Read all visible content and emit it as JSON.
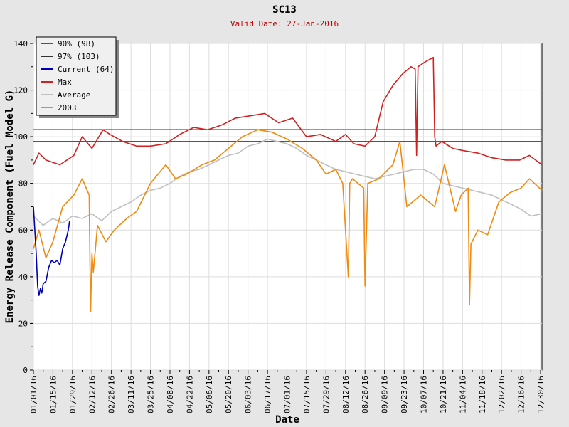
{
  "chart_data": {
    "type": "line",
    "title": "SC13",
    "subtitle": "Valid Date: 27-Jan-2016",
    "xlabel": "Date",
    "ylabel": "Energy Release Component (Fuel Model G)",
    "ylim": [
      0,
      140
    ],
    "yticks": [
      0,
      20,
      40,
      60,
      80,
      100,
      120,
      140
    ],
    "xticks": [
      "01/01/16",
      "01/15/16",
      "01/29/16",
      "02/12/16",
      "02/26/16",
      "03/11/16",
      "03/25/16",
      "04/08/16",
      "04/22/16",
      "05/06/16",
      "05/20/16",
      "06/03/16",
      "06/17/16",
      "07/01/16",
      "07/15/16",
      "07/29/16",
      "08/12/16",
      "08/26/16",
      "09/09/16",
      "09/23/16",
      "10/07/16",
      "10/21/16",
      "11/04/16",
      "11/18/16",
      "12/02/16",
      "12/16/16",
      "12/30/16"
    ],
    "grid": true,
    "legend_position": "top-left",
    "series": [
      {
        "name": "90% (98)",
        "color": "#555555",
        "type": "hline",
        "value": 98
      },
      {
        "name": "97% (103)",
        "color": "#333333",
        "type": "hline",
        "value": 103
      },
      {
        "name": "Current (64)",
        "color": "#0000b0",
        "x": [
          "2016-01-01",
          "2016-01-03",
          "2016-01-04",
          "2016-01-05",
          "2016-01-06",
          "2016-01-07",
          "2016-01-08",
          "2016-01-10",
          "2016-01-12",
          "2016-01-14",
          "2016-01-16",
          "2016-01-18",
          "2016-01-20",
          "2016-01-22",
          "2016-01-24",
          "2016-01-26",
          "2016-01-27"
        ],
        "y": [
          70,
          50,
          36,
          32,
          35,
          33,
          37,
          38,
          44,
          47,
          46,
          47,
          45,
          52,
          55,
          60,
          64
        ]
      },
      {
        "name": "Max",
        "color": "#d02020",
        "x": [
          "2016-01-01",
          "2016-01-05",
          "2016-01-10",
          "2016-01-20",
          "2016-01-30",
          "2016-02-05",
          "2016-02-12",
          "2016-02-20",
          "2016-02-25",
          "2016-03-05",
          "2016-03-15",
          "2016-03-25",
          "2016-04-05",
          "2016-04-15",
          "2016-04-25",
          "2016-05-05",
          "2016-05-15",
          "2016-05-25",
          "2016-06-05",
          "2016-06-15",
          "2016-06-25",
          "2016-07-05",
          "2016-07-15",
          "2016-07-25",
          "2016-08-05",
          "2016-08-12",
          "2016-08-18",
          "2016-08-26",
          "2016-09-02",
          "2016-09-08",
          "2016-09-15",
          "2016-09-22",
          "2016-09-28",
          "2016-10-01",
          "2016-10-02",
          "2016-10-03",
          "2016-10-08",
          "2016-10-14",
          "2016-10-15",
          "2016-10-16",
          "2016-10-20",
          "2016-10-28",
          "2016-11-05",
          "2016-11-15",
          "2016-11-25",
          "2016-12-05",
          "2016-12-15",
          "2016-12-22",
          "2016-12-31"
        ],
        "y": [
          88,
          93,
          90,
          88,
          92,
          100,
          95,
          103,
          101,
          98,
          96,
          96,
          97,
          101,
          104,
          103,
          105,
          108,
          109,
          110,
          106,
          108,
          100,
          101,
          98,
          101,
          97,
          96,
          100,
          115,
          122,
          127,
          130,
          129,
          92,
          130,
          132,
          134,
          100,
          96,
          98,
          95,
          94,
          93,
          91,
          90,
          90,
          92,
          88
        ]
      },
      {
        "name": "Average",
        "color": "#c0c0c0",
        "x": [
          "2016-01-01",
          "2016-01-08",
          "2016-01-15",
          "2016-01-22",
          "2016-01-29",
          "2016-02-05",
          "2016-02-12",
          "2016-02-19",
          "2016-02-26",
          "2016-03-04",
          "2016-03-11",
          "2016-03-18",
          "2016-03-25",
          "2016-04-01",
          "2016-04-08",
          "2016-04-15",
          "2016-04-22",
          "2016-04-29",
          "2016-05-06",
          "2016-05-13",
          "2016-05-20",
          "2016-05-27",
          "2016-06-03",
          "2016-06-10",
          "2016-06-17",
          "2016-06-24",
          "2016-07-01",
          "2016-07-08",
          "2016-07-15",
          "2016-07-22",
          "2016-07-29",
          "2016-08-05",
          "2016-08-12",
          "2016-08-19",
          "2016-08-26",
          "2016-09-02",
          "2016-09-09",
          "2016-09-16",
          "2016-09-23",
          "2016-09-30",
          "2016-10-07",
          "2016-10-14",
          "2016-10-21",
          "2016-10-28",
          "2016-11-04",
          "2016-11-11",
          "2016-11-18",
          "2016-11-25",
          "2016-12-02",
          "2016-12-09",
          "2016-12-16",
          "2016-12-23",
          "2016-12-31"
        ],
        "y": [
          66,
          62,
          65,
          63,
          66,
          65,
          67,
          64,
          68,
          70,
          72,
          75,
          77,
          78,
          80,
          83,
          85,
          86,
          88,
          90,
          92,
          93,
          96,
          97,
          99,
          98,
          97,
          95,
          92,
          90,
          88,
          86,
          85,
          84,
          83,
          82,
          83,
          84,
          85,
          86,
          86,
          84,
          80,
          79,
          78,
          77,
          76,
          75,
          73,
          71,
          69,
          66,
          67
        ]
      },
      {
        "name": "2003",
        "color": "#f08a10",
        "x": [
          "2016-01-01",
          "2016-01-05",
          "2016-01-10",
          "2016-01-15",
          "2016-01-22",
          "2016-01-30",
          "2016-02-05",
          "2016-02-10",
          "2016-02-11",
          "2016-02-12",
          "2016-02-13",
          "2016-02-16",
          "2016-02-22",
          "2016-02-28",
          "2016-03-08",
          "2016-03-15",
          "2016-03-25",
          "2016-04-05",
          "2016-04-12",
          "2016-04-20",
          "2016-05-01",
          "2016-05-10",
          "2016-05-20",
          "2016-05-30",
          "2016-06-10",
          "2016-06-20",
          "2016-07-01",
          "2016-07-12",
          "2016-07-22",
          "2016-07-29",
          "2016-08-05",
          "2016-08-10",
          "2016-08-14",
          "2016-08-15",
          "2016-08-17",
          "2016-08-25",
          "2016-08-26",
          "2016-08-28",
          "2016-09-05",
          "2016-09-15",
          "2016-09-20",
          "2016-09-25",
          "2016-10-05",
          "2016-10-15",
          "2016-10-22",
          "2016-10-30",
          "2016-11-03",
          "2016-11-08",
          "2016-11-09",
          "2016-11-10",
          "2016-11-15",
          "2016-11-22",
          "2016-11-30",
          "2016-12-08",
          "2016-12-16",
          "2016-12-22",
          "2016-12-31"
        ],
        "y": [
          52,
          60,
          48,
          55,
          70,
          75,
          82,
          75,
          25,
          50,
          42,
          62,
          55,
          60,
          65,
          68,
          80,
          88,
          82,
          84,
          88,
          90,
          95,
          100,
          103,
          102,
          99,
          95,
          90,
          84,
          86,
          80,
          40,
          80,
          82,
          78,
          36,
          80,
          82,
          88,
          98,
          70,
          75,
          70,
          88,
          68,
          75,
          78,
          28,
          54,
          60,
          58,
          72,
          76,
          78,
          82,
          77
        ]
      }
    ]
  }
}
